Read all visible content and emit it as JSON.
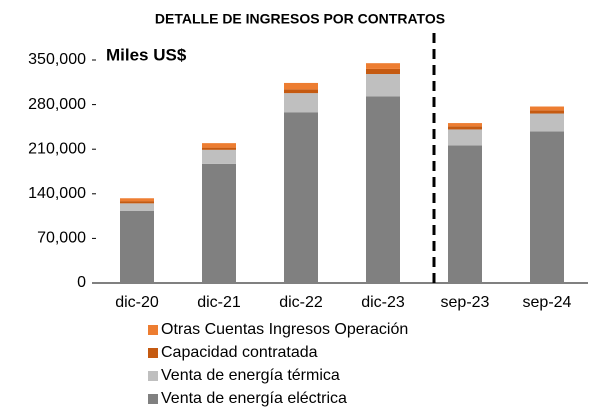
{
  "chart_data": {
    "type": "stacked_bar",
    "title": "DETALLE DE INGRESOS POR CONTRATOS",
    "subtitle": "Miles US$",
    "categories": [
      "dic-20",
      "dic-21",
      "dic-22",
      "dic-23",
      "sep-23",
      "sep-24"
    ],
    "series": [
      {
        "name": "Venta de energía eléctrica",
        "color": "#808080",
        "values": [
          113000,
          187000,
          268000,
          293000,
          216000,
          238000
        ]
      },
      {
        "name": "Venta de energía térmica",
        "color": "#bfbfbf",
        "values": [
          12000,
          22000,
          30000,
          35000,
          25000,
          28000
        ]
      },
      {
        "name": "Capacidad contratada",
        "color": "#c55a11",
        "values": [
          3500,
          3500,
          6000,
          8000,
          5000,
          5000
        ]
      },
      {
        "name": "Otras Cuentas Ingresos Operación",
        "color": "#ed7d31",
        "values": [
          4500,
          7000,
          10000,
          9000,
          5000,
          6000
        ]
      }
    ],
    "ylim": [
      0,
      350000
    ],
    "yticks": [
      0,
      {
        "value": 70000,
        "label": "70,000"
      },
      {
        "value": 140000,
        "label": "140,000"
      },
      {
        "value": 210000,
        "label": "210,000"
      },
      {
        "value": 280000,
        "label": "280,000"
      },
      {
        "value": 350000,
        "label": "350,000"
      }
    ],
    "grid": false
  }
}
